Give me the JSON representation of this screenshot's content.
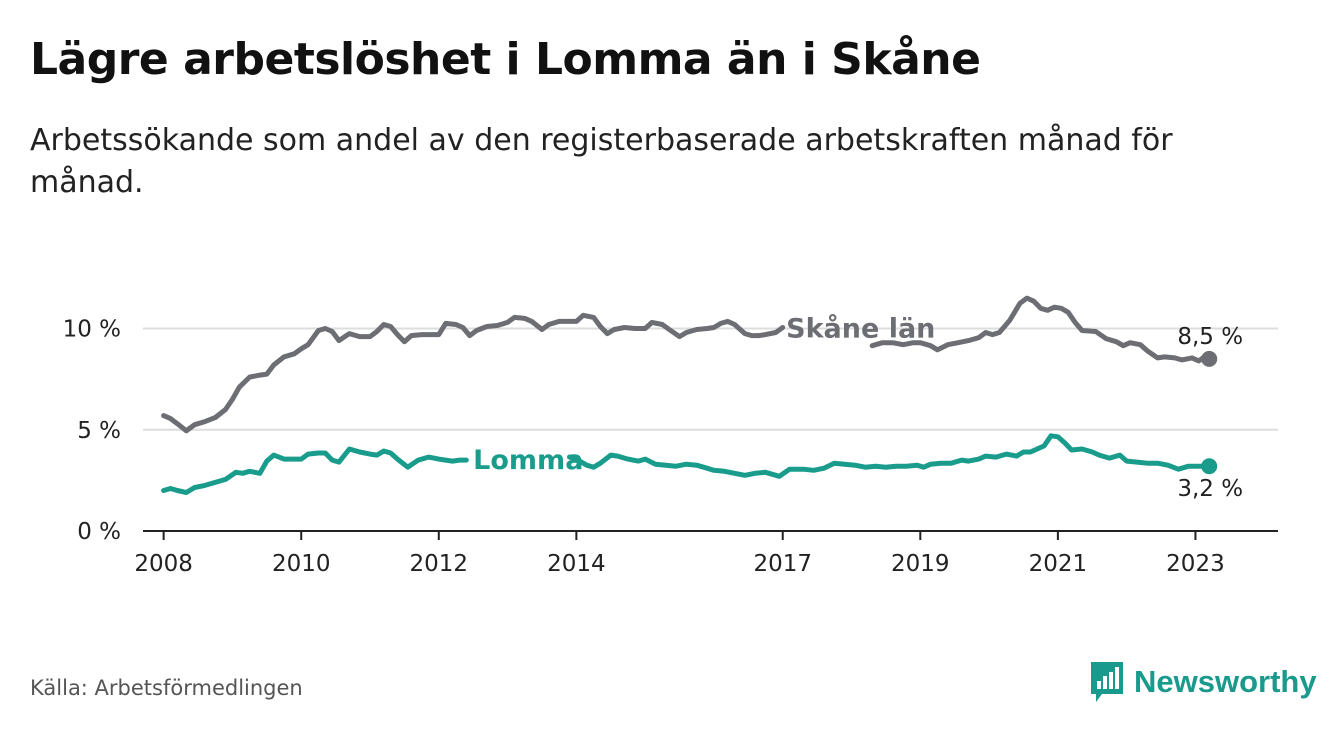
{
  "title": "Lägre arbetslöshet i Lomma än i Skåne",
  "subtitle": "Arbetssökande som andel av den registerbaserade arbetskraften månad för månad.",
  "source": "Källa: Arbetsförmedlingen",
  "brand": {
    "name": "Newsworthy",
    "icon": "bar-chart-logo-icon"
  },
  "colors": {
    "skane": "#6d6e73",
    "lomma": "#1a9c8c",
    "grid": "#dddddd",
    "axis": "#222222",
    "text": "#222222"
  },
  "chart_data": {
    "type": "line",
    "title": "Lägre arbetslöshet i Lomma än i Skåne",
    "xlabel": "",
    "ylabel": "",
    "x_range": [
      2007.7,
      2024.2
    ],
    "ylim": [
      0,
      12
    ],
    "y_ticks": [
      0,
      5,
      10
    ],
    "y_tick_labels": [
      "0 %",
      "5 %",
      "10 %"
    ],
    "x_ticks": [
      2008,
      2010,
      2012,
      2014,
      2017,
      2019,
      2021,
      2023
    ],
    "x_tick_labels": [
      "2008",
      "2010",
      "2012",
      "2014",
      "2017",
      "2019",
      "2021",
      "2023"
    ],
    "legend": "inline labels on lines",
    "grid": true,
    "series": [
      {
        "name": "Skåne län",
        "color": "#6d6e73",
        "end_label": "8,5 %",
        "points": [
          [
            2008.0,
            5.7
          ],
          [
            2008.1,
            5.55
          ],
          [
            2008.2,
            5.3
          ],
          [
            2008.33,
            4.95
          ],
          [
            2008.45,
            5.25
          ],
          [
            2008.6,
            5.4
          ],
          [
            2008.75,
            5.6
          ],
          [
            2008.9,
            6.0
          ],
          [
            2009.0,
            6.5
          ],
          [
            2009.1,
            7.1
          ],
          [
            2009.25,
            7.6
          ],
          [
            2009.4,
            7.7
          ],
          [
            2009.5,
            7.75
          ],
          [
            2009.6,
            8.2
          ],
          [
            2009.75,
            8.6
          ],
          [
            2009.9,
            8.75
          ],
          [
            2010.0,
            9.0
          ],
          [
            2010.1,
            9.2
          ],
          [
            2010.25,
            9.9
          ],
          [
            2010.35,
            10.0
          ],
          [
            2010.45,
            9.85
          ],
          [
            2010.55,
            9.4
          ],
          [
            2010.7,
            9.75
          ],
          [
            2010.85,
            9.6
          ],
          [
            2011.0,
            9.6
          ],
          [
            2011.1,
            9.85
          ],
          [
            2011.2,
            10.2
          ],
          [
            2011.3,
            10.1
          ],
          [
            2011.4,
            9.7
          ],
          [
            2011.5,
            9.35
          ],
          [
            2011.6,
            9.65
          ],
          [
            2011.75,
            9.7
          ],
          [
            2011.9,
            9.7
          ],
          [
            2012.0,
            9.7
          ],
          [
            2012.1,
            10.25
          ],
          [
            2012.25,
            10.2
          ],
          [
            2012.35,
            10.05
          ],
          [
            2012.45,
            9.65
          ],
          [
            2012.55,
            9.9
          ],
          [
            2012.7,
            10.1
          ],
          [
            2012.85,
            10.15
          ],
          [
            2013.0,
            10.3
          ],
          [
            2013.1,
            10.55
          ],
          [
            2013.25,
            10.5
          ],
          [
            2013.35,
            10.35
          ],
          [
            2013.5,
            9.95
          ],
          [
            2013.6,
            10.2
          ],
          [
            2013.75,
            10.35
          ],
          [
            2013.9,
            10.35
          ],
          [
            2014.0,
            10.35
          ],
          [
            2014.1,
            10.65
          ],
          [
            2014.25,
            10.55
          ],
          [
            2014.35,
            10.1
          ],
          [
            2014.45,
            9.75
          ],
          [
            2014.55,
            9.95
          ],
          [
            2014.7,
            10.05
          ],
          [
            2014.85,
            10.0
          ],
          [
            2015.0,
            10.0
          ],
          [
            2015.1,
            10.3
          ],
          [
            2015.25,
            10.2
          ],
          [
            2015.35,
            9.95
          ],
          [
            2015.5,
            9.6
          ],
          [
            2015.6,
            9.8
          ],
          [
            2015.75,
            9.95
          ],
          [
            2015.9,
            10.0
          ],
          [
            2016.0,
            10.05
          ],
          [
            2016.1,
            10.25
          ],
          [
            2016.2,
            10.35
          ],
          [
            2016.3,
            10.2
          ],
          [
            2016.45,
            9.75
          ],
          [
            2016.55,
            9.65
          ],
          [
            2016.65,
            9.65
          ],
          [
            2016.75,
            9.7
          ],
          [
            2016.9,
            9.8
          ],
          [
            2017.0,
            10.05
          ],
          null,
          [
            2018.3,
            9.15
          ],
          [
            2018.45,
            9.3
          ],
          [
            2018.6,
            9.3
          ],
          [
            2018.75,
            9.2
          ],
          [
            2018.9,
            9.3
          ],
          [
            2019.0,
            9.3
          ],
          [
            2019.15,
            9.15
          ],
          [
            2019.25,
            8.95
          ],
          [
            2019.4,
            9.2
          ],
          [
            2019.55,
            9.3
          ],
          [
            2019.7,
            9.4
          ],
          [
            2019.85,
            9.55
          ],
          [
            2019.95,
            9.8
          ],
          [
            2020.05,
            9.7
          ],
          [
            2020.15,
            9.8
          ],
          [
            2020.3,
            10.4
          ],
          [
            2020.45,
            11.25
          ],
          [
            2020.55,
            11.5
          ],
          [
            2020.65,
            11.35
          ],
          [
            2020.75,
            11.0
          ],
          [
            2020.85,
            10.9
          ],
          [
            2020.95,
            11.05
          ],
          [
            2021.05,
            11.0
          ],
          [
            2021.15,
            10.8
          ],
          [
            2021.25,
            10.3
          ],
          [
            2021.35,
            9.9
          ],
          [
            2021.55,
            9.85
          ],
          [
            2021.7,
            9.5
          ],
          [
            2021.85,
            9.35
          ],
          [
            2021.95,
            9.15
          ],
          [
            2022.05,
            9.3
          ],
          [
            2022.2,
            9.2
          ],
          [
            2022.3,
            8.9
          ],
          [
            2022.45,
            8.55
          ],
          [
            2022.55,
            8.6
          ],
          [
            2022.7,
            8.55
          ],
          [
            2022.8,
            8.45
          ],
          [
            2022.95,
            8.55
          ],
          [
            2023.05,
            8.4
          ],
          [
            2023.15,
            8.65
          ],
          [
            2023.2,
            8.5
          ]
        ],
        "label": "Skåne län",
        "label_at": [
          2017.05,
          10.0
        ]
      },
      {
        "name": "Lomma",
        "color": "#1a9c8c",
        "end_label": "3,2 %",
        "points": [
          [
            2008.0,
            2.0
          ],
          [
            2008.1,
            2.1
          ],
          [
            2008.2,
            2.0
          ],
          [
            2008.33,
            1.9
          ],
          [
            2008.45,
            2.15
          ],
          [
            2008.6,
            2.25
          ],
          [
            2008.75,
            2.4
          ],
          [
            2008.9,
            2.55
          ],
          [
            2009.05,
            2.9
          ],
          [
            2009.15,
            2.85
          ],
          [
            2009.25,
            2.95
          ],
          [
            2009.4,
            2.85
          ],
          [
            2009.5,
            3.45
          ],
          [
            2009.6,
            3.75
          ],
          [
            2009.75,
            3.55
          ],
          [
            2009.9,
            3.55
          ],
          [
            2010.0,
            3.55
          ],
          [
            2010.1,
            3.8
          ],
          [
            2010.25,
            3.85
          ],
          [
            2010.35,
            3.85
          ],
          [
            2010.45,
            3.5
          ],
          [
            2010.55,
            3.4
          ],
          [
            2010.7,
            4.05
          ],
          [
            2010.85,
            3.9
          ],
          [
            2011.0,
            3.8
          ],
          [
            2011.1,
            3.75
          ],
          [
            2011.2,
            3.95
          ],
          [
            2011.3,
            3.85
          ],
          [
            2011.4,
            3.55
          ],
          [
            2011.55,
            3.15
          ],
          [
            2011.7,
            3.5
          ],
          [
            2011.85,
            3.65
          ],
          [
            2012.0,
            3.55
          ],
          [
            2012.1,
            3.5
          ],
          [
            2012.2,
            3.45
          ],
          [
            2012.3,
            3.5
          ],
          [
            2012.4,
            3.5
          ],
          null,
          [
            2013.9,
            3.65
          ],
          [
            2014.0,
            3.55
          ],
          [
            2014.15,
            3.25
          ],
          [
            2014.25,
            3.15
          ],
          [
            2014.35,
            3.35
          ],
          [
            2014.5,
            3.75
          ],
          [
            2014.6,
            3.7
          ],
          [
            2014.75,
            3.55
          ],
          [
            2014.9,
            3.45
          ],
          [
            2015.0,
            3.55
          ],
          [
            2015.15,
            3.3
          ],
          [
            2015.3,
            3.25
          ],
          [
            2015.45,
            3.2
          ],
          [
            2015.6,
            3.3
          ],
          [
            2015.75,
            3.25
          ],
          [
            2015.85,
            3.15
          ],
          [
            2016.0,
            3.0
          ],
          [
            2016.15,
            2.95
          ],
          [
            2016.3,
            2.85
          ],
          [
            2016.45,
            2.75
          ],
          [
            2016.6,
            2.85
          ],
          [
            2016.75,
            2.9
          ],
          [
            2016.85,
            2.8
          ],
          [
            2016.95,
            2.7
          ],
          [
            2017.1,
            3.05
          ],
          [
            2017.3,
            3.05
          ],
          [
            2017.45,
            3.0
          ],
          [
            2017.6,
            3.1
          ],
          [
            2017.75,
            3.35
          ],
          [
            2017.9,
            3.3
          ],
          [
            2018.05,
            3.25
          ],
          [
            2018.2,
            3.15
          ],
          [
            2018.35,
            3.2
          ],
          [
            2018.5,
            3.15
          ],
          [
            2018.65,
            3.2
          ],
          [
            2018.8,
            3.2
          ],
          [
            2018.95,
            3.25
          ],
          [
            2019.05,
            3.15
          ],
          [
            2019.15,
            3.3
          ],
          [
            2019.3,
            3.35
          ],
          [
            2019.45,
            3.35
          ],
          [
            2019.6,
            3.5
          ],
          [
            2019.7,
            3.45
          ],
          [
            2019.85,
            3.55
          ],
          [
            2019.95,
            3.7
          ],
          [
            2020.1,
            3.65
          ],
          [
            2020.25,
            3.8
          ],
          [
            2020.4,
            3.7
          ],
          [
            2020.5,
            3.9
          ],
          [
            2020.6,
            3.9
          ],
          [
            2020.7,
            4.05
          ],
          [
            2020.8,
            4.2
          ],
          [
            2020.9,
            4.7
          ],
          [
            2021.0,
            4.65
          ],
          [
            2021.1,
            4.35
          ],
          [
            2021.2,
            4.0
          ],
          [
            2021.35,
            4.05
          ],
          [
            2021.5,
            3.9
          ],
          [
            2021.6,
            3.75
          ],
          [
            2021.75,
            3.6
          ],
          [
            2021.9,
            3.75
          ],
          [
            2022.0,
            3.45
          ],
          [
            2022.15,
            3.4
          ],
          [
            2022.3,
            3.35
          ],
          [
            2022.45,
            3.35
          ],
          [
            2022.6,
            3.25
          ],
          [
            2022.75,
            3.05
          ],
          [
            2022.9,
            3.2
          ],
          [
            2023.05,
            3.2
          ],
          [
            2023.2,
            3.2
          ]
        ],
        "label": "Lomma",
        "label_at": [
          2012.5,
          3.5
        ]
      }
    ]
  }
}
